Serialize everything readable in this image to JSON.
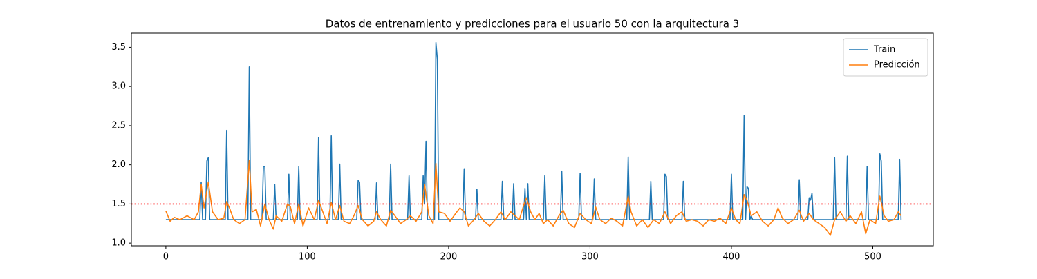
{
  "chart_data": {
    "type": "line",
    "title": "Datos de entrenamiento y predicciones para el usuario 50 con la arquitectura 3",
    "xlim": [
      -24.4,
      542.8
    ],
    "xticks": [
      0,
      100,
      200,
      300,
      400,
      500
    ],
    "ylim": [
      0.966,
      3.68
    ],
    "yticks": [
      {
        "value": 1,
        "label": "1.0"
      },
      1.5,
      {
        "value": 2,
        "label": "2.0"
      },
      2.5,
      {
        "value": 3,
        "label": "3.0"
      },
      3.5
    ],
    "threshold": {
      "value": 1.5,
      "color": "#ff0000",
      "style": "dotted"
    },
    "legend": "upper right",
    "series": [
      {
        "name": "Train",
        "color": "#1f77b4",
        "x": [
          0,
          24,
          25,
          26,
          28,
          29,
          30,
          31,
          42,
          43,
          44,
          58,
          59,
          60,
          68,
          69,
          70,
          71,
          76,
          77,
          78,
          86,
          87,
          88,
          93,
          94,
          95,
          107,
          108,
          109,
          116,
          117,
          118,
          122,
          123,
          124,
          135,
          136,
          137,
          138,
          148,
          149,
          150,
          158,
          159,
          160,
          171,
          172,
          173,
          181,
          182,
          183,
          184,
          185,
          190,
          191,
          192,
          193,
          210,
          211,
          212,
          219,
          220,
          221,
          237,
          238,
          239,
          245,
          246,
          247,
          253,
          254,
          255,
          256,
          257,
          267,
          268,
          269,
          279,
          280,
          281,
          292,
          293,
          294,
          302,
          303,
          304,
          326,
          327,
          328,
          342,
          343,
          344,
          352,
          353,
          354,
          355,
          365,
          366,
          367,
          399,
          400,
          401,
          408,
          409,
          410,
          411,
          412,
          413,
          414,
          415,
          447,
          448,
          449,
          454,
          455,
          456,
          457,
          458,
          472,
          473,
          474,
          481,
          482,
          483,
          495,
          496,
          497,
          504,
          505,
          506,
          507,
          518,
          519,
          520
        ],
        "values": [
          1.3,
          1.3,
          1.78,
          1.3,
          1.3,
          2.05,
          2.09,
          1.3,
          1.3,
          2.44,
          1.3,
          1.3,
          3.25,
          1.3,
          1.3,
          1.98,
          1.98,
          1.3,
          1.3,
          1.75,
          1.3,
          1.3,
          1.88,
          1.3,
          1.3,
          1.98,
          1.3,
          1.3,
          2.35,
          1.3,
          1.3,
          2.37,
          1.3,
          1.3,
          2.01,
          1.3,
          1.3,
          1.8,
          1.78,
          1.3,
          1.3,
          1.77,
          1.3,
          1.3,
          2.01,
          1.3,
          1.3,
          1.86,
          1.3,
          1.3,
          1.86,
          1.5,
          2.3,
          1.3,
          1.3,
          3.56,
          3.35,
          1.3,
          1.3,
          1.95,
          1.3,
          1.3,
          1.69,
          1.3,
          1.3,
          1.79,
          1.3,
          1.3,
          1.76,
          1.3,
          1.3,
          1.7,
          1.3,
          1.76,
          1.3,
          1.3,
          1.86,
          1.3,
          1.3,
          1.92,
          1.3,
          1.3,
          1.89,
          1.3,
          1.3,
          1.82,
          1.3,
          1.3,
          2.1,
          1.3,
          1.3,
          1.79,
          1.3,
          1.3,
          1.88,
          1.85,
          1.3,
          1.3,
          1.79,
          1.3,
          1.3,
          1.88,
          1.3,
          1.3,
          2.63,
          1.3,
          1.72,
          1.7,
          1.3,
          1.35,
          1.3,
          1.3,
          1.81,
          1.3,
          1.3,
          1.58,
          1.55,
          1.64,
          1.3,
          1.3,
          2.09,
          1.3,
          1.3,
          2.11,
          1.3,
          1.3,
          1.98,
          1.3,
          1.3,
          2.14,
          2.05,
          1.3,
          1.3,
          2.07,
          1.3
        ]
      },
      {
        "name": "Predicción",
        "color": "#ff7f0e",
        "x": [
          0,
          3,
          6,
          10,
          15,
          20,
          23,
          25,
          27,
          30,
          33,
          37,
          41,
          43,
          45,
          48,
          52,
          56,
          59,
          61,
          64,
          67,
          70,
          73,
          76,
          78,
          82,
          86,
          88,
          91,
          94,
          97,
          101,
          105,
          108,
          111,
          114,
          117,
          120,
          123,
          126,
          130,
          133,
          136,
          139,
          143,
          147,
          149,
          152,
          156,
          159,
          162,
          166,
          170,
          173,
          177,
          181,
          183,
          186,
          189,
          191,
          193,
          197,
          201,
          205,
          208,
          211,
          214,
          218,
          221,
          225,
          229,
          233,
          237,
          240,
          244,
          247,
          250,
          253,
          255,
          258,
          261,
          264,
          267,
          270,
          274,
          278,
          281,
          285,
          289,
          293,
          297,
          301,
          304,
          307,
          311,
          315,
          319,
          323,
          327,
          329,
          333,
          337,
          341,
          345,
          349,
          353,
          357,
          361,
          365,
          368,
          372,
          376,
          380,
          384,
          388,
          392,
          396,
          400,
          403,
          406,
          409,
          411,
          414,
          418,
          422,
          426,
          430,
          433,
          436,
          440,
          444,
          448,
          451,
          455,
          458,
          462,
          466,
          470,
          473,
          477,
          481,
          484,
          488,
          492,
          495,
          498,
          502,
          505,
          508,
          511,
          515,
          518,
          520
        ],
        "values": [
          1.41,
          1.28,
          1.33,
          1.3,
          1.35,
          1.3,
          1.4,
          1.75,
          1.45,
          1.78,
          1.4,
          1.3,
          1.32,
          1.53,
          1.45,
          1.3,
          1.25,
          1.3,
          2.06,
          1.4,
          1.43,
          1.22,
          1.5,
          1.3,
          1.18,
          1.35,
          1.28,
          1.5,
          1.47,
          1.25,
          1.5,
          1.22,
          1.45,
          1.3,
          1.55,
          1.4,
          1.25,
          1.52,
          1.3,
          1.48,
          1.28,
          1.25,
          1.35,
          1.48,
          1.3,
          1.22,
          1.28,
          1.4,
          1.3,
          1.22,
          1.42,
          1.35,
          1.25,
          1.3,
          1.35,
          1.28,
          1.4,
          1.75,
          1.35,
          1.25,
          2.02,
          1.4,
          1.38,
          1.28,
          1.38,
          1.45,
          1.4,
          1.22,
          1.3,
          1.38,
          1.28,
          1.22,
          1.3,
          1.4,
          1.3,
          1.4,
          1.35,
          1.3,
          1.48,
          1.58,
          1.4,
          1.3,
          1.38,
          1.25,
          1.3,
          1.22,
          1.35,
          1.42,
          1.25,
          1.2,
          1.38,
          1.3,
          1.25,
          1.46,
          1.3,
          1.25,
          1.32,
          1.28,
          1.22,
          1.6,
          1.4,
          1.22,
          1.3,
          1.2,
          1.3,
          1.25,
          1.4,
          1.25,
          1.35,
          1.4,
          1.28,
          1.3,
          1.28,
          1.22,
          1.3,
          1.28,
          1.32,
          1.25,
          1.45,
          1.3,
          1.25,
          1.62,
          1.55,
          1.35,
          1.4,
          1.28,
          1.22,
          1.3,
          1.45,
          1.32,
          1.25,
          1.3,
          1.42,
          1.28,
          1.38,
          1.3,
          1.25,
          1.2,
          1.1,
          1.3,
          1.4,
          1.28,
          1.35,
          1.25,
          1.4,
          1.12,
          1.3,
          1.25,
          1.6,
          1.35,
          1.28,
          1.3,
          1.4,
          1.35
        ]
      }
    ]
  }
}
